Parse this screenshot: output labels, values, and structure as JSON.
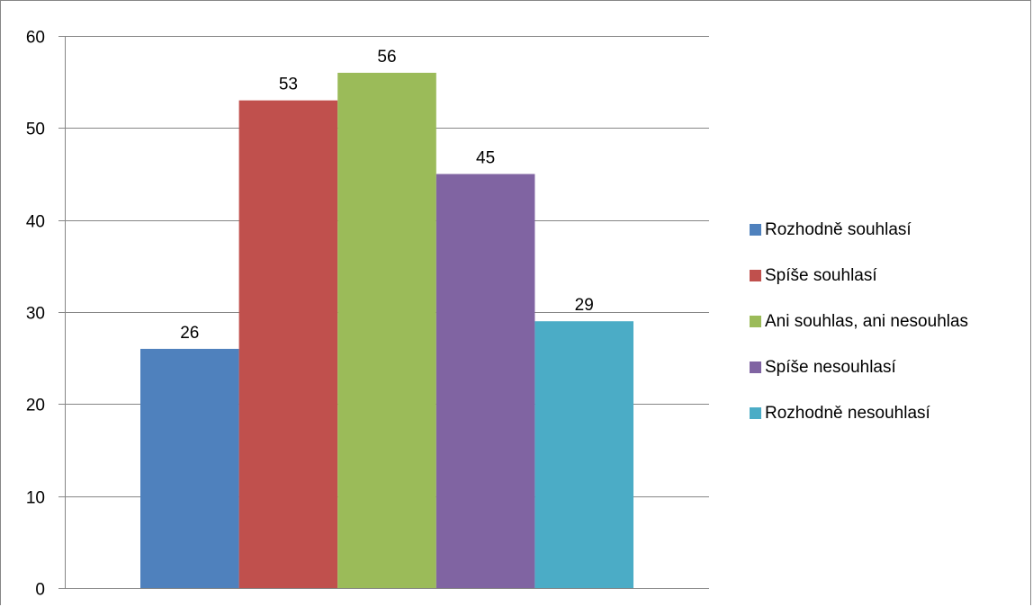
{
  "chart_data": {
    "type": "bar",
    "title": "",
    "xlabel": "",
    "ylabel": "",
    "ylim": [
      0,
      60
    ],
    "yticks": [
      0,
      10,
      20,
      30,
      40,
      50,
      60
    ],
    "grid": true,
    "legend_position": "right",
    "series": [
      {
        "name": "Rozhodně souhlasí",
        "value": 26,
        "color": "#4F81BD"
      },
      {
        "name": "Spíše souhlasí",
        "value": 53,
        "color": "#C0504D"
      },
      {
        "name": "Ani souhlas, ani nesouhlas",
        "value": 56,
        "color": "#9BBB59"
      },
      {
        "name": "Spíše nesouhlasí",
        "value": 45,
        "color": "#8064A2"
      },
      {
        "name": "Rozhodně nesouhlasí",
        "value": 29,
        "color": "#4BACC6"
      }
    ]
  }
}
